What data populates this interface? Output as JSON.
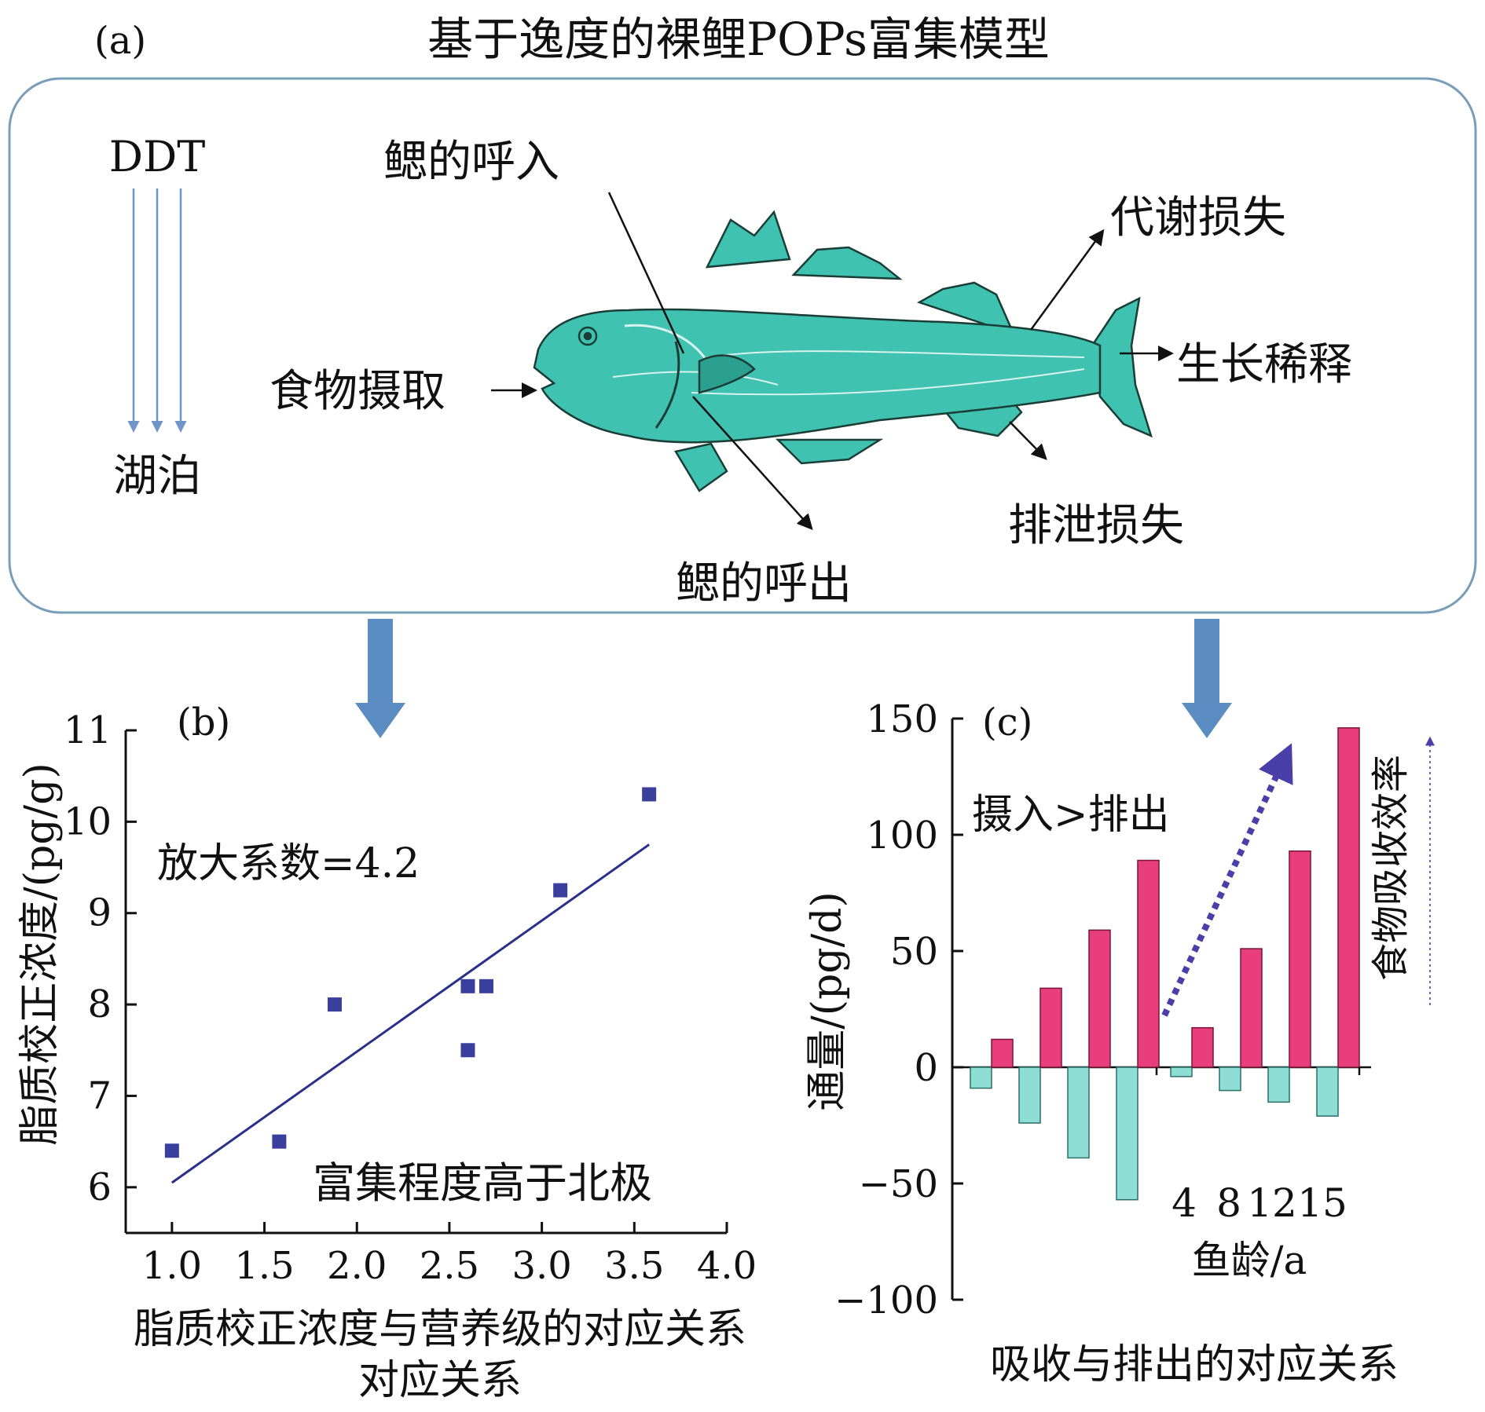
{
  "panel_a": {
    "label": "(a)",
    "title": "基于逸度的裸鲤POPs富集模型",
    "ddt": "DDT",
    "lake": "湖泊",
    "gill_in": "鳃的呼入",
    "gill_out": "鳃的呼出",
    "food": "食物摄取",
    "metabolism": "代谢损失",
    "growth": "生长稀释",
    "excretion": "排泄损失",
    "colors": {
      "fish": "#40c2b0",
      "box_border": "#7a9db8",
      "flow_arrow": "#5b8cc2"
    }
  },
  "panel_b": {
    "label": "(b)",
    "annotation_factor": "放大系数=4.2",
    "annotation_compare": "富集程度高于北极",
    "chart_data": {
      "type": "scatter",
      "xlabel": "脂质校正浓度与营养级的对应关系",
      "ylabel": "脂质校正浓度/(pg/g)",
      "xlim": [
        0.75,
        4.0
      ],
      "ylim": [
        5.5,
        11
      ],
      "xticks": [
        "1.0",
        "1.5",
        "2.0",
        "2.5",
        "3.0",
        "3.5",
        "4.0"
      ],
      "yticks": [
        "6",
        "7",
        "8",
        "9",
        "10",
        "11"
      ],
      "points": [
        {
          "x": 1.0,
          "y": 6.4
        },
        {
          "x": 1.58,
          "y": 6.5
        },
        {
          "x": 1.88,
          "y": 8.0
        },
        {
          "x": 2.6,
          "y": 8.2
        },
        {
          "x": 2.7,
          "y": 8.2
        },
        {
          "x": 2.6,
          "y": 7.5
        },
        {
          "x": 3.1,
          "y": 9.25
        },
        {
          "x": 3.58,
          "y": 10.3
        }
      ],
      "fit_line": [
        {
          "x": 1.0,
          "y": 6.05
        },
        {
          "x": 3.58,
          "y": 9.75
        }
      ],
      "marker_color": "#3a3f9e",
      "line_color": "#2a2f8a"
    }
  },
  "panel_c": {
    "label": "(c)",
    "annotation_ratio": "摄入>排出",
    "side_label": "食物吸收效率",
    "chart_data": {
      "type": "bar",
      "title": "吸收与排出的对应关系",
      "ylabel": "通量/(pg/d)",
      "xlabel": "鱼龄/a",
      "age_labels": [
        "4",
        "8",
        "12",
        "15"
      ],
      "ylim": [
        -100,
        150
      ],
      "yticks": [
        "150",
        "100",
        "50",
        "0",
        "−50",
        "−100"
      ],
      "groups": [
        {
          "uptake": [
            12,
            34,
            59,
            89
          ],
          "loss": [
            -9,
            -24,
            -39,
            -57
          ]
        },
        {
          "uptake": [
            17,
            51,
            93,
            146
          ],
          "loss": [
            -4,
            -10,
            -15,
            -21
          ]
        }
      ],
      "uptake_color": "#e83e7c",
      "loss_color": "#8fded6"
    }
  }
}
